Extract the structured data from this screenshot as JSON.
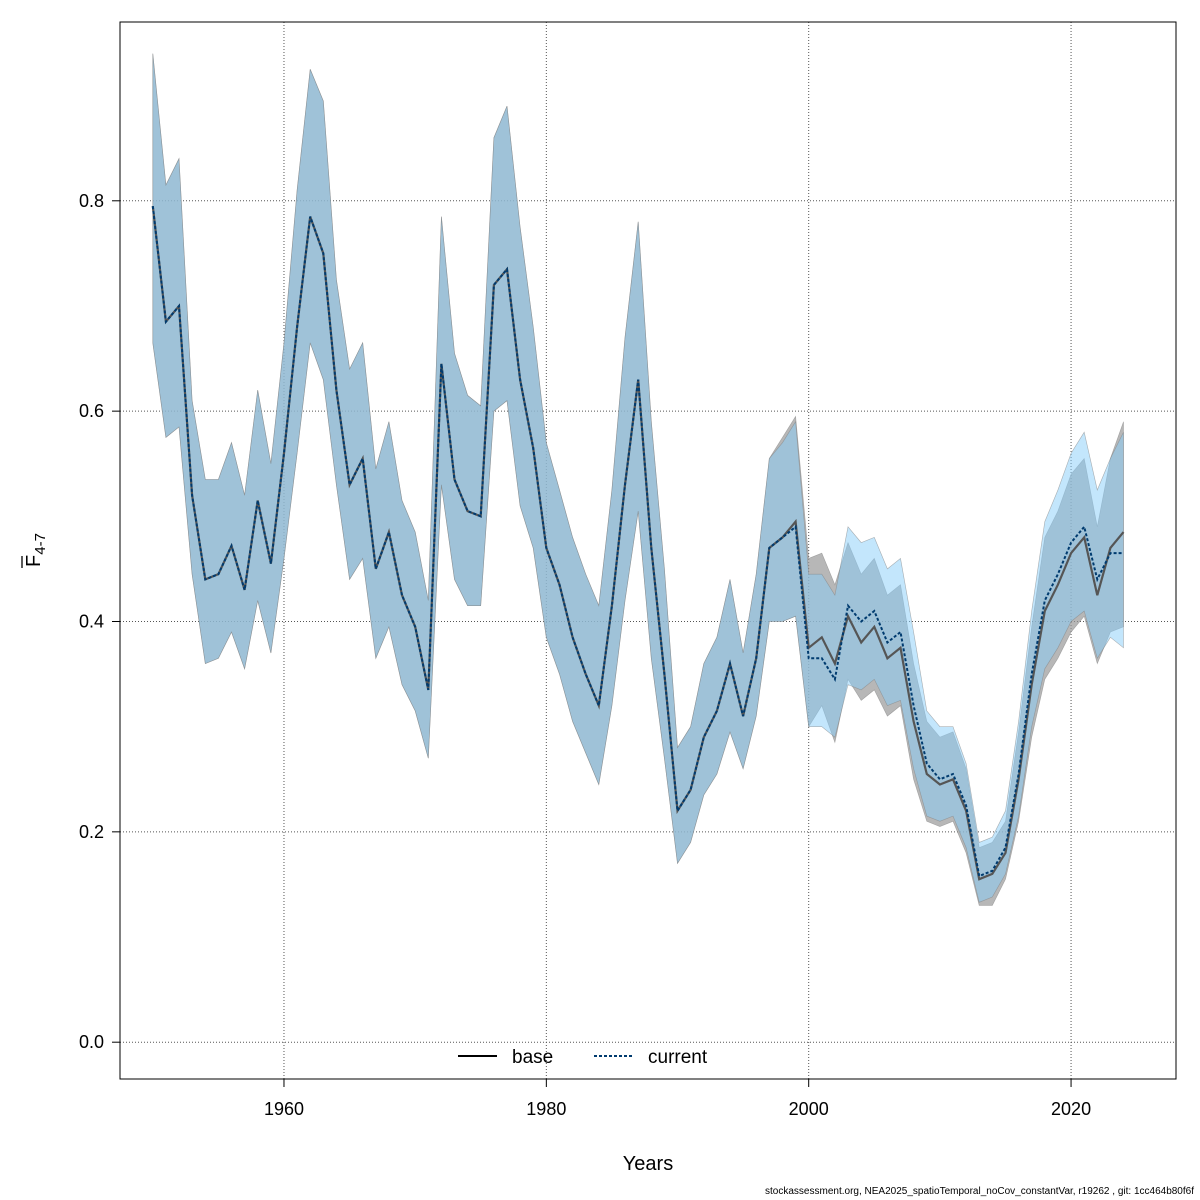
{
  "chart_data": {
    "type": "line",
    "xlabel": "Years",
    "ylabel": {
      "main": "F",
      "sub": "4-7"
    },
    "xlim": [
      1947.5,
      2028
    ],
    "ylim": [
      -0.035,
      0.97
    ],
    "x_ticks": [
      "1960",
      "1980",
      "2000",
      "2020"
    ],
    "y_ticks": [
      "0.0",
      "0.2",
      "0.4",
      "0.6",
      "0.8"
    ],
    "grid": true,
    "legend_position": "bottom",
    "colors": {
      "base_band": "#999999",
      "current_band": "#87CEFA",
      "base_line": "#555555",
      "current_line": "#003b6f"
    },
    "legend": [
      {
        "label": "base",
        "style": "solid"
      },
      {
        "label": "current",
        "style": "dashed"
      }
    ],
    "x": [
      1950,
      1951,
      1952,
      1953,
      1954,
      1955,
      1956,
      1957,
      1958,
      1959,
      1960,
      1961,
      1962,
      1963,
      1964,
      1965,
      1966,
      1967,
      1968,
      1969,
      1970,
      1971,
      1972,
      1973,
      1974,
      1975,
      1976,
      1977,
      1978,
      1979,
      1980,
      1981,
      1982,
      1983,
      1984,
      1985,
      1986,
      1987,
      1988,
      1989,
      1990,
      1991,
      1992,
      1993,
      1994,
      1995,
      1996,
      1997,
      1998,
      1999,
      2000,
      2001,
      2002,
      2003,
      2004,
      2005,
      2006,
      2007,
      2008,
      2009,
      2010,
      2011,
      2012,
      2013,
      2014,
      2015,
      2016,
      2017,
      2018,
      2019,
      2020,
      2021,
      2022,
      2023,
      2024
    ],
    "series": [
      {
        "name": "base",
        "values": [
          0.795,
          0.685,
          0.7,
          0.52,
          0.44,
          0.445,
          0.472,
          0.43,
          0.515,
          0.455,
          0.56,
          0.68,
          0.785,
          0.75,
          0.62,
          0.53,
          0.555,
          0.45,
          0.485,
          0.425,
          0.395,
          0.335,
          0.645,
          0.535,
          0.505,
          0.5,
          0.72,
          0.735,
          0.63,
          0.565,
          0.47,
          0.435,
          0.385,
          0.35,
          0.32,
          0.415,
          0.53,
          0.63,
          0.47,
          0.35,
          0.22,
          0.24,
          0.29,
          0.315,
          0.36,
          0.31,
          0.365,
          0.47,
          0.48,
          0.495,
          0.375,
          0.385,
          0.36,
          0.405,
          0.38,
          0.395,
          0.365,
          0.375,
          0.305,
          0.255,
          0.245,
          0.25,
          0.22,
          0.155,
          0.16,
          0.18,
          0.25,
          0.34,
          0.41,
          0.435,
          0.465,
          0.48,
          0.425,
          0.47,
          0.485
        ],
        "lower": [
          0.665,
          0.575,
          0.585,
          0.445,
          0.36,
          0.365,
          0.39,
          0.355,
          0.42,
          0.37,
          0.46,
          0.56,
          0.665,
          0.63,
          0.53,
          0.44,
          0.46,
          0.365,
          0.395,
          0.34,
          0.315,
          0.27,
          0.53,
          0.44,
          0.415,
          0.415,
          0.6,
          0.61,
          0.51,
          0.47,
          0.385,
          0.35,
          0.305,
          0.275,
          0.245,
          0.32,
          0.42,
          0.505,
          0.365,
          0.27,
          0.17,
          0.19,
          0.235,
          0.255,
          0.295,
          0.26,
          0.31,
          0.4,
          0.4,
          0.405,
          0.3,
          0.32,
          0.285,
          0.345,
          0.325,
          0.335,
          0.31,
          0.32,
          0.25,
          0.21,
          0.205,
          0.21,
          0.18,
          0.13,
          0.13,
          0.155,
          0.21,
          0.29,
          0.345,
          0.365,
          0.39,
          0.405,
          0.36,
          0.39,
          0.395
        ],
        "upper": [
          0.94,
          0.815,
          0.84,
          0.61,
          0.535,
          0.535,
          0.57,
          0.52,
          0.62,
          0.55,
          0.665,
          0.81,
          0.925,
          0.895,
          0.725,
          0.64,
          0.665,
          0.545,
          0.59,
          0.515,
          0.485,
          0.42,
          0.785,
          0.655,
          0.615,
          0.605,
          0.86,
          0.89,
          0.775,
          0.68,
          0.57,
          0.525,
          0.48,
          0.445,
          0.415,
          0.525,
          0.67,
          0.78,
          0.59,
          0.45,
          0.28,
          0.3,
          0.36,
          0.385,
          0.44,
          0.37,
          0.445,
          0.555,
          0.575,
          0.595,
          0.46,
          0.465,
          0.435,
          0.475,
          0.445,
          0.46,
          0.425,
          0.435,
          0.36,
          0.305,
          0.29,
          0.295,
          0.26,
          0.185,
          0.19,
          0.21,
          0.295,
          0.395,
          0.48,
          0.505,
          0.54,
          0.555,
          0.49,
          0.555,
          0.59
        ]
      },
      {
        "name": "current",
        "values": [
          0.795,
          0.685,
          0.7,
          0.52,
          0.44,
          0.445,
          0.472,
          0.43,
          0.515,
          0.455,
          0.56,
          0.68,
          0.785,
          0.75,
          0.62,
          0.53,
          0.555,
          0.45,
          0.485,
          0.425,
          0.395,
          0.335,
          0.645,
          0.535,
          0.505,
          0.5,
          0.72,
          0.735,
          0.63,
          0.565,
          0.47,
          0.435,
          0.385,
          0.35,
          0.32,
          0.415,
          0.53,
          0.63,
          0.47,
          0.35,
          0.22,
          0.24,
          0.29,
          0.315,
          0.36,
          0.31,
          0.365,
          0.47,
          0.48,
          0.49,
          0.365,
          0.365,
          0.345,
          0.415,
          0.4,
          0.41,
          0.38,
          0.39,
          0.32,
          0.265,
          0.25,
          0.255,
          0.225,
          0.158,
          0.163,
          0.185,
          0.255,
          0.35,
          0.42,
          0.445,
          0.475,
          0.49,
          0.44,
          0.465,
          0.465
        ],
        "lower": [
          0.665,
          0.575,
          0.585,
          0.445,
          0.36,
          0.365,
          0.39,
          0.355,
          0.42,
          0.37,
          0.46,
          0.56,
          0.665,
          0.63,
          0.53,
          0.44,
          0.46,
          0.365,
          0.395,
          0.34,
          0.315,
          0.27,
          0.53,
          0.44,
          0.415,
          0.415,
          0.6,
          0.61,
          0.51,
          0.47,
          0.385,
          0.35,
          0.305,
          0.275,
          0.245,
          0.32,
          0.42,
          0.505,
          0.365,
          0.27,
          0.17,
          0.19,
          0.235,
          0.255,
          0.295,
          0.26,
          0.31,
          0.4,
          0.4,
          0.405,
          0.3,
          0.3,
          0.29,
          0.34,
          0.335,
          0.345,
          0.32,
          0.325,
          0.26,
          0.215,
          0.21,
          0.215,
          0.185,
          0.133,
          0.138,
          0.16,
          0.215,
          0.3,
          0.355,
          0.375,
          0.4,
          0.41,
          0.365,
          0.385,
          0.375
        ],
        "upper": [
          0.94,
          0.815,
          0.84,
          0.61,
          0.535,
          0.535,
          0.57,
          0.52,
          0.62,
          0.55,
          0.665,
          0.81,
          0.925,
          0.895,
          0.725,
          0.64,
          0.665,
          0.545,
          0.59,
          0.515,
          0.485,
          0.42,
          0.785,
          0.655,
          0.615,
          0.605,
          0.86,
          0.89,
          0.775,
          0.68,
          0.57,
          0.525,
          0.48,
          0.445,
          0.415,
          0.525,
          0.67,
          0.78,
          0.59,
          0.45,
          0.28,
          0.3,
          0.36,
          0.385,
          0.44,
          0.37,
          0.445,
          0.555,
          0.57,
          0.59,
          0.445,
          0.445,
          0.425,
          0.49,
          0.475,
          0.48,
          0.45,
          0.46,
          0.39,
          0.315,
          0.3,
          0.3,
          0.265,
          0.19,
          0.195,
          0.22,
          0.305,
          0.41,
          0.495,
          0.525,
          0.56,
          0.58,
          0.525,
          0.555,
          0.58
        ]
      }
    ]
  },
  "footer_text": "stockassessment.org, NEA2025_spatioTemporal_noCov_constantVar, r19262 , git: 1cc464b80f6f"
}
